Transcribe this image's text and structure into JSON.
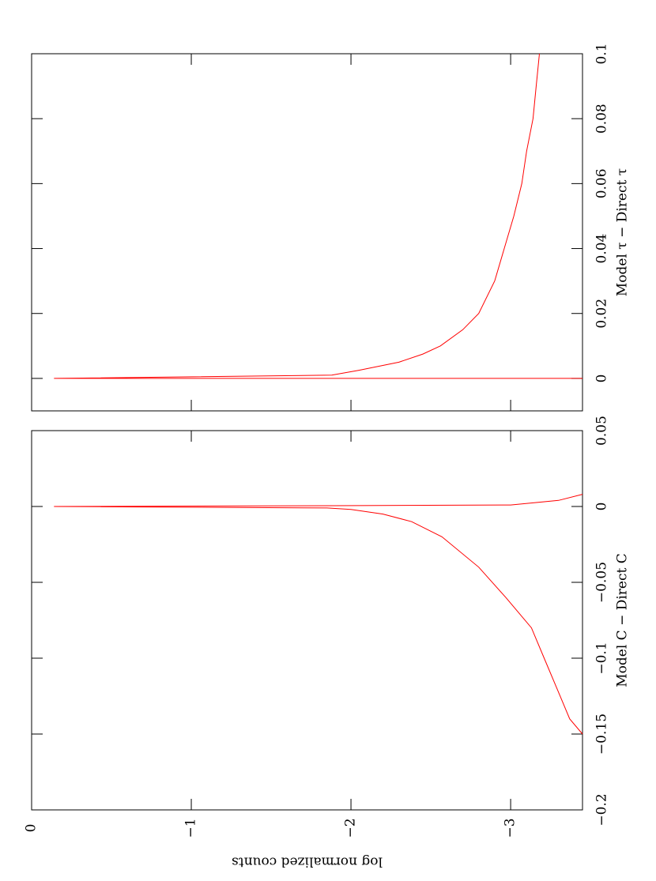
{
  "chart_data": [
    {
      "type": "line",
      "x_label": "Model C − Direct C",
      "y_label": "log normalized counts",
      "xlim": [
        -0.2,
        0.05
      ],
      "xticks": [
        {
          "value": -0.2,
          "label": "−0.2"
        },
        {
          "value": -0.15,
          "label": "−0.15"
        },
        {
          "value": -0.1,
          "label": "−0.1"
        },
        {
          "value": -0.05,
          "label": "−0.05"
        },
        0,
        0.05
      ],
      "ylim": [
        0,
        -3.45
      ],
      "yticks": [
        0,
        {
          "value": -1,
          "label": "−1"
        },
        {
          "value": -2,
          "label": "−2"
        },
        {
          "value": -3,
          "label": "−3"
        }
      ],
      "x": [
        -0.15,
        -0.14,
        -0.12,
        -0.1,
        -0.08,
        -0.06,
        -0.04,
        -0.02,
        -0.01,
        -0.005,
        -0.002,
        -0.001,
        0,
        0.0005,
        0.001,
        0.004,
        0.008
      ],
      "series": [
        {
          "color": "#ff0000",
          "values": [
            -3.45,
            -3.37,
            -3.29,
            -3.21,
            -3.13,
            -2.97,
            -2.8,
            -2.57,
            -2.38,
            -2.2,
            -2.0,
            -1.85,
            -0.14,
            -1.9,
            -3.0,
            -3.3,
            -3.45
          ]
        }
      ]
    },
    {
      "type": "line",
      "x_label": "Model τ − Direct τ",
      "xlim": [
        -0.01,
        0.1
      ],
      "xticks": [
        0,
        0.02,
        0.04,
        0.06,
        0.08,
        0.1
      ],
      "ylim": [
        0,
        -3.45
      ],
      "yticks": [
        0,
        -1,
        -2,
        -3
      ],
      "x": [
        0,
        0,
        0.001,
        0.0025,
        0.005,
        0.0075,
        0.01,
        0.015,
        0.02,
        0.03,
        0.04,
        0.05,
        0.06,
        0.07,
        0.08,
        0.09,
        0.1
      ],
      "series": [
        {
          "color": "#ff0000",
          "values": [
            -3.45,
            -0.14,
            -1.88,
            -2.05,
            -2.3,
            -2.45,
            -2.56,
            -2.7,
            -2.8,
            -2.9,
            -2.96,
            -3.02,
            -3.07,
            -3.1,
            -3.14,
            -3.16,
            -3.18
          ]
        }
      ]
    }
  ]
}
